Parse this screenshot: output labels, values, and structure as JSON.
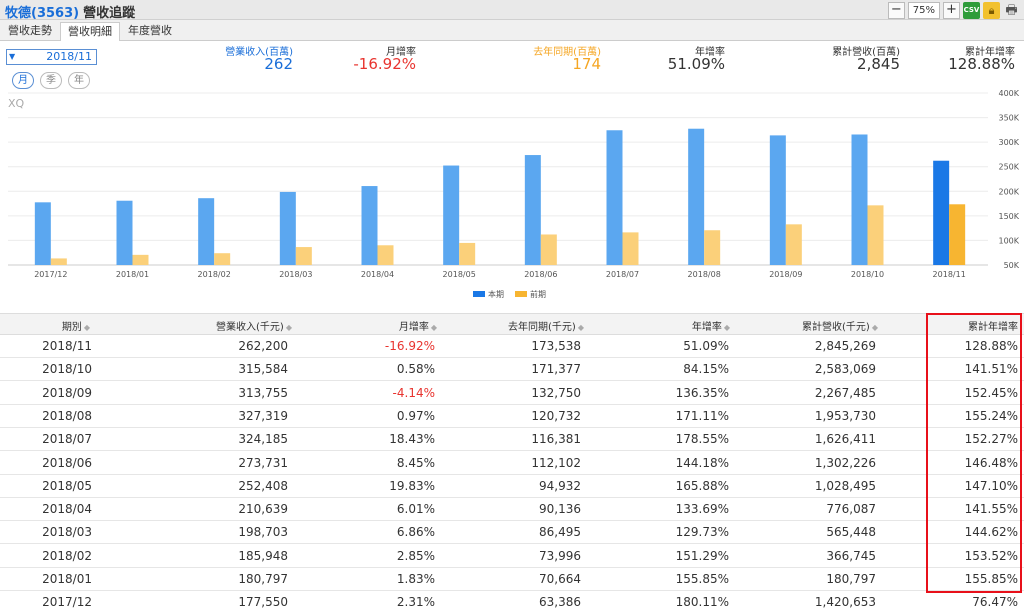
{
  "header": {
    "company": "牧德(3563)",
    "module": "營收追蹤",
    "zoom": "75%",
    "csv_label": "CSV"
  },
  "tabs": [
    {
      "label": "營收走勢"
    },
    {
      "label": "營收明細"
    },
    {
      "label": "年度營收"
    }
  ],
  "date_selector": {
    "value": "2018/11"
  },
  "period_buttons": [
    {
      "label": "月"
    },
    {
      "label": "季"
    },
    {
      "label": "年"
    }
  ],
  "summary": [
    {
      "label": "營業收入(百萬)",
      "value": "262",
      "color": "#1a6ed8",
      "label_color": "#1a6ed8"
    },
    {
      "label": "月增率",
      "value": "-16.92%",
      "color": "#e8342f",
      "label_color": "#333333"
    },
    {
      "label": "去年同期(百萬)",
      "value": "174",
      "color": "#f5a623",
      "label_color": "#f5a623"
    },
    {
      "label": "年增率",
      "value": "51.09%",
      "color": "#333333",
      "label_color": "#333333"
    },
    {
      "label": "累計營收(百萬)",
      "value": "2,845",
      "color": "#333333",
      "label_color": "#333333"
    },
    {
      "label": "累計年增率",
      "value": "128.88%",
      "color": "#333333",
      "label_color": "#333333"
    }
  ],
  "chart_data": {
    "type": "bar",
    "watermark": "XQ",
    "categories": [
      "2017/12",
      "2018/01",
      "2018/02",
      "2018/03",
      "2018/04",
      "2018/05",
      "2018/06",
      "2018/07",
      "2018/08",
      "2018/09",
      "2018/10",
      "2018/11"
    ],
    "series": [
      {
        "name": "本期",
        "color": "#5ba7f0",
        "highlight_color": "#1a78e6",
        "values": [
          177550,
          180797,
          185948,
          198703,
          210639,
          252408,
          273731,
          324185,
          327319,
          313755,
          315584,
          262200
        ]
      },
      {
        "name": "前期",
        "color": "#fbd07a",
        "highlight_color": "#f7b531",
        "values": [
          63386,
          70664,
          73996,
          86495,
          90136,
          94932,
          112102,
          116381,
          120732,
          132750,
          171377,
          173538
        ]
      }
    ],
    "y_ticks": [
      "50K",
      "100K",
      "150K",
      "200K",
      "250K",
      "300K",
      "350K",
      "400K"
    ],
    "y_tick_values": [
      50000,
      100000,
      150000,
      200000,
      250000,
      300000,
      350000,
      400000
    ],
    "ylim": [
      50000,
      400000
    ],
    "legend_position": "bottom-center",
    "grid": true
  },
  "table": {
    "headers": [
      "期別",
      "營業收入(千元)",
      "月增率",
      "去年同期(千元)",
      "年增率",
      "累計營收(千元)",
      "累計年增率"
    ],
    "sort_icon": "◆",
    "rows": [
      [
        "2018/11",
        "262,200",
        "-16.92%",
        "173,538",
        "51.09%",
        "2,845,269",
        "128.88%"
      ],
      [
        "2018/10",
        "315,584",
        "0.58%",
        "171,377",
        "84.15%",
        "2,583,069",
        "141.51%"
      ],
      [
        "2018/09",
        "313,755",
        "-4.14%",
        "132,750",
        "136.35%",
        "2,267,485",
        "152.45%"
      ],
      [
        "2018/08",
        "327,319",
        "0.97%",
        "120,732",
        "171.11%",
        "1,953,730",
        "155.24%"
      ],
      [
        "2018/07",
        "324,185",
        "18.43%",
        "116,381",
        "178.55%",
        "1,626,411",
        "152.27%"
      ],
      [
        "2018/06",
        "273,731",
        "8.45%",
        "112,102",
        "144.18%",
        "1,302,226",
        "146.48%"
      ],
      [
        "2018/05",
        "252,408",
        "19.83%",
        "94,932",
        "165.88%",
        "1,028,495",
        "147.10%"
      ],
      [
        "2018/04",
        "210,639",
        "6.01%",
        "90,136",
        "133.69%",
        "776,087",
        "141.55%"
      ],
      [
        "2018/03",
        "198,703",
        "6.86%",
        "86,495",
        "129.73%",
        "565,448",
        "144.62%"
      ],
      [
        "2018/02",
        "185,948",
        "2.85%",
        "73,996",
        "151.29%",
        "366,745",
        "153.52%"
      ],
      [
        "2018/01",
        "180,797",
        "1.83%",
        "70,664",
        "155.85%",
        "180,797",
        "155.85%"
      ],
      [
        "2017/12",
        "177,550",
        "2.31%",
        "63,386",
        "180.11%",
        "1,420,653",
        "76.47%"
      ]
    ]
  },
  "colors": {
    "accent": "#1a6ed8",
    "negative": "#e8342f",
    "highlight_box": "#e8101a"
  }
}
